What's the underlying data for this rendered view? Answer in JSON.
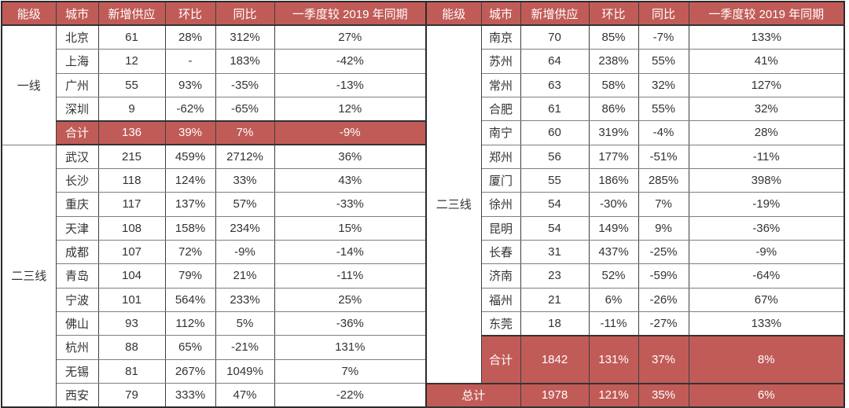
{
  "colors": {
    "accent": "#C15B57",
    "header_text": "#FFFFFF",
    "body_text": "#333333"
  },
  "chart_data": {
    "type": "table",
    "title": "",
    "columns": [
      "能级",
      "城市",
      "新增供应",
      "环比",
      "同比",
      "一季度较 2019 年同期"
    ],
    "left_panel": {
      "groups": [
        {
          "tier": "一线",
          "rows": [
            [
              "北京",
              "61",
              "28%",
              "312%",
              "27%"
            ],
            [
              "上海",
              "12",
              "-",
              "183%",
              "-42%"
            ],
            [
              "广州",
              "55",
              "93%",
              "-35%",
              "-13%"
            ],
            [
              "深圳",
              "9",
              "-62%",
              "-65%",
              "12%"
            ]
          ],
          "summary": {
            "label": "合计",
            "values": [
              "136",
              "39%",
              "7%",
              "-9%"
            ],
            "tall": false
          }
        },
        {
          "tier": "二三线",
          "rows": [
            [
              "武汉",
              "215",
              "459%",
              "2712%",
              "36%"
            ],
            [
              "长沙",
              "118",
              "124%",
              "33%",
              "43%"
            ],
            [
              "重庆",
              "117",
              "137%",
              "57%",
              "-33%"
            ],
            [
              "天津",
              "108",
              "158%",
              "234%",
              "15%"
            ],
            [
              "成都",
              "107",
              "72%",
              "-9%",
              "-14%"
            ],
            [
              "青岛",
              "104",
              "79%",
              "21%",
              "-11%"
            ],
            [
              "宁波",
              "101",
              "564%",
              "233%",
              "25%"
            ],
            [
              "佛山",
              "93",
              "112%",
              "5%",
              "-36%"
            ],
            [
              "杭州",
              "88",
              "65%",
              "-21%",
              "131%"
            ],
            [
              "无锡",
              "81",
              "267%",
              "1049%",
              "7%"
            ],
            [
              "西安",
              "79",
              "333%",
              "47%",
              "-22%"
            ]
          ],
          "summary": null
        }
      ]
    },
    "right_panel": {
      "groups": [
        {
          "tier": "二三线",
          "rows": [
            [
              "南京",
              "70",
              "85%",
              "-7%",
              "133%"
            ],
            [
              "苏州",
              "64",
              "238%",
              "55%",
              "41%"
            ],
            [
              "常州",
              "63",
              "58%",
              "32%",
              "127%"
            ],
            [
              "合肥",
              "61",
              "86%",
              "55%",
              "32%"
            ],
            [
              "南宁",
              "60",
              "319%",
              "-4%",
              "28%"
            ],
            [
              "郑州",
              "56",
              "177%",
              "-51%",
              "-11%"
            ],
            [
              "厦门",
              "55",
              "186%",
              "285%",
              "398%"
            ],
            [
              "徐州",
              "54",
              "-30%",
              "7%",
              "-19%"
            ],
            [
              "昆明",
              "54",
              "149%",
              "9%",
              "-36%"
            ],
            [
              "长春",
              "31",
              "437%",
              "-25%",
              "-9%"
            ],
            [
              "济南",
              "23",
              "52%",
              "-59%",
              "-64%"
            ],
            [
              "福州",
              "21",
              "6%",
              "-26%",
              "67%"
            ],
            [
              "东莞",
              "18",
              "-11%",
              "-27%",
              "133%"
            ]
          ],
          "summary": {
            "label": "合计",
            "values": [
              "1842",
              "131%",
              "37%",
              "8%"
            ],
            "tall": true
          }
        }
      ],
      "grand_total": {
        "label": "总计",
        "values": [
          "1978",
          "121%",
          "35%",
          "6%"
        ]
      }
    }
  }
}
